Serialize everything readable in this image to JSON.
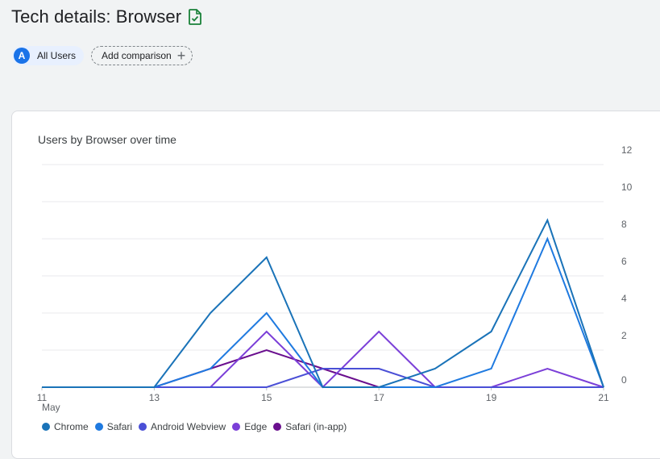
{
  "header": {
    "title": "Tech details: Browser",
    "icon": "report-check-icon",
    "icon_color": "#188038"
  },
  "comparison": {
    "segment_avatar": "A",
    "segment_label": "All Users",
    "add_label": "Add comparison",
    "add_icon": "plus-icon"
  },
  "card": {
    "title": "Users by Browser over time"
  },
  "chart_data": {
    "type": "line",
    "title": "Users by Browser over time",
    "x": [
      11,
      12,
      13,
      14,
      15,
      16,
      17,
      18,
      19,
      20,
      21
    ],
    "x_tick_labels": [
      "11",
      "13",
      "15",
      "17",
      "19",
      "21"
    ],
    "x_tick_values": [
      11,
      13,
      15,
      17,
      19,
      21
    ],
    "x_sublabel": "May",
    "y_ticks": [
      0,
      2,
      4,
      6,
      8,
      10,
      12
    ],
    "ylim": [
      0,
      12
    ],
    "y_axis_side": "right",
    "grid": true,
    "legend_position": "bottom",
    "series": [
      {
        "name": "Chrome",
        "color": "#1a73b8",
        "values": [
          0,
          0,
          0,
          4,
          7,
          0,
          0,
          1,
          3,
          9,
          0
        ]
      },
      {
        "name": "Safari",
        "color": "#1f7ae0",
        "values": [
          0,
          0,
          0,
          1,
          4,
          0,
          0,
          0,
          1,
          8,
          0
        ]
      },
      {
        "name": "Android Webview",
        "color": "#4a4fd6",
        "values": [
          0,
          0,
          0,
          0,
          0,
          1,
          1,
          0,
          0,
          0,
          0
        ]
      },
      {
        "name": "Edge",
        "color": "#7b3fd8",
        "values": [
          0,
          0,
          0,
          0,
          3,
          0,
          3,
          0,
          0,
          1,
          0
        ]
      },
      {
        "name": "Safari (in-app)",
        "color": "#6a0f8e",
        "values": [
          0,
          0,
          0,
          1,
          2,
          1,
          0,
          0,
          0,
          0,
          0
        ]
      }
    ]
  }
}
